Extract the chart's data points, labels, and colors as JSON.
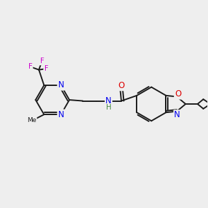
{
  "background_color": "#eeeeee",
  "bond_color": "#1a1a1a",
  "bond_width": 1.4,
  "atom_colors": {
    "N": "#0000ee",
    "O": "#dd0000",
    "F": "#cc00cc",
    "H": "#448844",
    "C": "#1a1a1a"
  },
  "font_size_atom": 8.5,
  "font_size_small": 7.5,
  "fig_w": 3.0,
  "fig_h": 3.0,
  "dpi": 100
}
